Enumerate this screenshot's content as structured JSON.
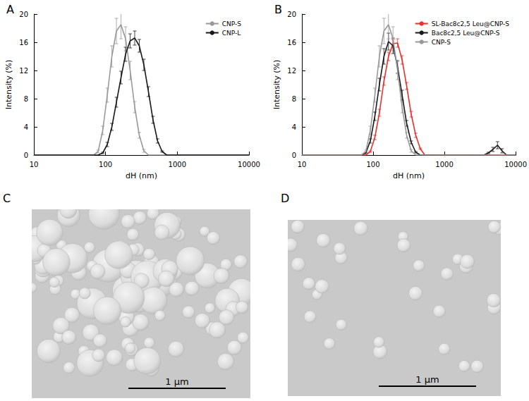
{
  "chart_data": [
    {
      "type": "line",
      "title": "A",
      "x_label": "dH (nm)",
      "y_label": "Intensity (%)",
      "log": "x",
      "grid": false,
      "legend": "upper right",
      "xlim": [
        10,
        10000
      ],
      "xticks": [
        10,
        100,
        1000,
        10000
      ],
      "ylim": [
        0,
        20
      ],
      "yticks": [
        0,
        4,
        8,
        12,
        16,
        20
      ],
      "x": [
        10,
        58.8,
        68.1,
        78.8,
        91.3,
        105.7,
        122.4,
        141.8,
        164.2,
        190.1,
        220.2,
        255.0,
        295.3,
        342.0,
        396.1,
        458.7,
        531.2,
        615.1,
        712.4,
        825.0,
        10000
      ],
      "series": [
        {
          "name": "CNP-S",
          "color": "#999999",
          "values": [
            0,
            0,
            0,
            0.5,
            3.5,
            8.5,
            14.0,
            17.6,
            18.5,
            16.5,
            12.0,
            6.8,
            2.8,
            0.6,
            0,
            0,
            0,
            0,
            0,
            0,
            0
          ],
          "errors": [
            0,
            0,
            0,
            0.2,
            0.6,
            1.0,
            1.5,
            1.8,
            2.0,
            1.7,
            1.3,
            0.8,
            0.4,
            0.2,
            0,
            0,
            0,
            0,
            0,
            0,
            0
          ]
        },
        {
          "name": "CNP-L",
          "color": "#1a1a1a",
          "values": [
            0,
            0,
            0,
            0,
            0.3,
            1.5,
            4.0,
            7.5,
            11.0,
            14.3,
            16.2,
            16.6,
            15.5,
            12.8,
            9.0,
            5.0,
            2.0,
            0.5,
            0,
            0,
            0
          ],
          "errors": [
            0,
            0,
            0,
            0,
            0.1,
            0.3,
            0.5,
            0.7,
            0.9,
            1.0,
            1.0,
            1.0,
            0.9,
            0.8,
            0.7,
            0.5,
            0.3,
            0.1,
            0,
            0,
            0
          ]
        }
      ]
    },
    {
      "type": "line",
      "title": "B",
      "x_label": "dH (nm)",
      "y_label": "Intensity (%)",
      "log": "x",
      "grid": false,
      "legend": "upper right",
      "xlim": [
        10,
        10000
      ],
      "xticks": [
        10,
        100,
        1000,
        10000
      ],
      "ylim": [
        0,
        20
      ],
      "yticks": [
        0,
        4,
        8,
        12,
        16,
        20
      ],
      "x": [
        10,
        58.8,
        68.1,
        78.8,
        91.3,
        105.7,
        122.4,
        141.8,
        164.2,
        190.1,
        220.2,
        255.0,
        295.3,
        342.0,
        396.1,
        458.7,
        531.2,
        615.1,
        712.4,
        825.0,
        3580,
        4145,
        4801,
        5560,
        6439,
        7456,
        10000
      ],
      "series": [
        {
          "name": "SL-Bac8c2,5 Leu@CNP-S",
          "color": "#e8312f",
          "values": [
            0,
            0,
            0,
            0,
            0.5,
            2.5,
            6.0,
            10.5,
            14.0,
            15.8,
            15.9,
            13.5,
            9.8,
            5.8,
            2.8,
            0.9,
            0,
            0,
            0,
            0,
            0,
            0,
            0,
            0,
            0,
            0,
            0
          ],
          "errors": [
            0,
            0,
            0,
            0,
            0.1,
            0.3,
            0.5,
            0.6,
            0.6,
            0.6,
            0.6,
            0.6,
            0.5,
            0.4,
            0.3,
            0.1,
            0,
            0,
            0,
            0,
            0,
            0,
            0,
            0,
            0,
            0,
            0
          ]
        },
        {
          "name": "Bac8c2,5 Leu@CNP-S",
          "color": "#1a1a1a",
          "values": [
            0,
            0,
            0,
            0.3,
            2.0,
            5.5,
            10.0,
            14.0,
            16.1,
            15.5,
            12.5,
            8.5,
            4.5,
            1.8,
            0.4,
            0,
            0,
            0,
            0,
            0,
            0,
            0.3,
            0.8,
            1.4,
            0.6,
            0,
            0
          ],
          "errors": [
            0,
            0,
            0,
            0.1,
            0.3,
            0.6,
            0.9,
            1.1,
            1.2,
            1.1,
            0.9,
            0.7,
            0.4,
            0.2,
            0.1,
            0,
            0,
            0,
            0,
            0,
            0,
            0.1,
            0.3,
            0.5,
            0.3,
            0,
            0
          ]
        },
        {
          "name": "CNP-S",
          "color": "#999999",
          "values": [
            0,
            0,
            0,
            0.5,
            3.5,
            8.5,
            14.0,
            17.6,
            18.5,
            16.5,
            12.0,
            6.8,
            2.8,
            0.6,
            0,
            0,
            0,
            0,
            0,
            0,
            0,
            0,
            0,
            0,
            0,
            0,
            0
          ],
          "errors": [
            0,
            0,
            0,
            0.2,
            0.6,
            1.0,
            1.5,
            1.8,
            2.0,
            1.7,
            1.3,
            0.8,
            0.4,
            0.2,
            0,
            0,
            0,
            0,
            0,
            0,
            0,
            0,
            0,
            0,
            0,
            0,
            0
          ]
        }
      ]
    }
  ],
  "images": [
    {
      "label": "C",
      "scale_bar": "1 µm"
    },
    {
      "label": "D",
      "scale_bar": "1 µm"
    }
  ]
}
